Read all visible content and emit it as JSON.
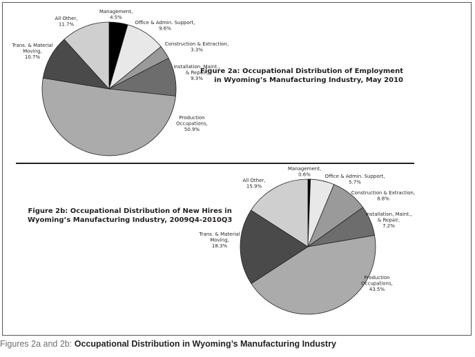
{
  "caption": {
    "prefix": "Figures 2a and 2b: ",
    "main": "Occupational Distribution in Wyoming’s Manufacturing Industry"
  },
  "colors": {
    "management": "#000000",
    "office_admin": "#e8e8e8",
    "construction": "#9a9a9a",
    "installation": "#6d6d6d",
    "production": "#ababab",
    "trans_material": "#4a4a4a",
    "all_other": "#cfcfcf",
    "outline": "#231f20"
  },
  "chart_data": [
    {
      "type": "pie",
      "title_lines": [
        "Figure 2a: Occupational Distribution of Employment",
        "in Wyoming’s Manufacturing Industry, May 2010"
      ],
      "slices": [
        {
          "label": "Management,",
          "value": 4.5,
          "value_text": "4.5%",
          "color_key": "management"
        },
        {
          "label": "Office & Admin. Support,",
          "value": 9.6,
          "value_text": "9.6%",
          "color_key": "office_admin"
        },
        {
          "label": "Construction & Extraction,",
          "value": 3.3,
          "value_text": "3.3%",
          "color_key": "construction"
        },
        {
          "label": "Installation, Maint.,|& Repair,",
          "value": 9.3,
          "value_text": "9.3%",
          "color_key": "installation"
        },
        {
          "label": "Production|Occupations,",
          "value": 50.9,
          "value_text": "50.9%",
          "color_key": "production"
        },
        {
          "label": "Trans. & Material|Moving,",
          "value": 10.7,
          "value_text": "10.7%",
          "color_key": "trans_material"
        },
        {
          "label": "All Other,",
          "value": 11.7,
          "value_text": "11.7%",
          "color_key": "all_other"
        }
      ]
    },
    {
      "type": "pie",
      "title_lines": [
        "Figure 2b: Occupational Distribution of New Hires in",
        "Wyoming’s Manufacturing Industry, 2009Q4-2010Q3"
      ],
      "slices": [
        {
          "label": "Management,",
          "value": 0.6,
          "value_text": "0.6%",
          "color_key": "management"
        },
        {
          "label": "Office & Admin. Support,",
          "value": 5.7,
          "value_text": "5.7%",
          "color_key": "office_admin"
        },
        {
          "label": "Construction & Extraction,",
          "value": 8.8,
          "value_text": "8.8%",
          "color_key": "construction"
        },
        {
          "label": "Installation, Maint.,|& Repair,",
          "value": 7.2,
          "value_text": "7.2%",
          "color_key": "installation"
        },
        {
          "label": "Production|Occupations,",
          "value": 43.5,
          "value_text": "43.5%",
          "color_key": "production"
        },
        {
          "label": "Trans. & Material|Moving,",
          "value": 18.3,
          "value_text": "18.3%",
          "color_key": "trans_material"
        },
        {
          "label": "All Other,",
          "value": 15.9,
          "value_text": "15.9%",
          "color_key": "all_other"
        }
      ]
    }
  ]
}
